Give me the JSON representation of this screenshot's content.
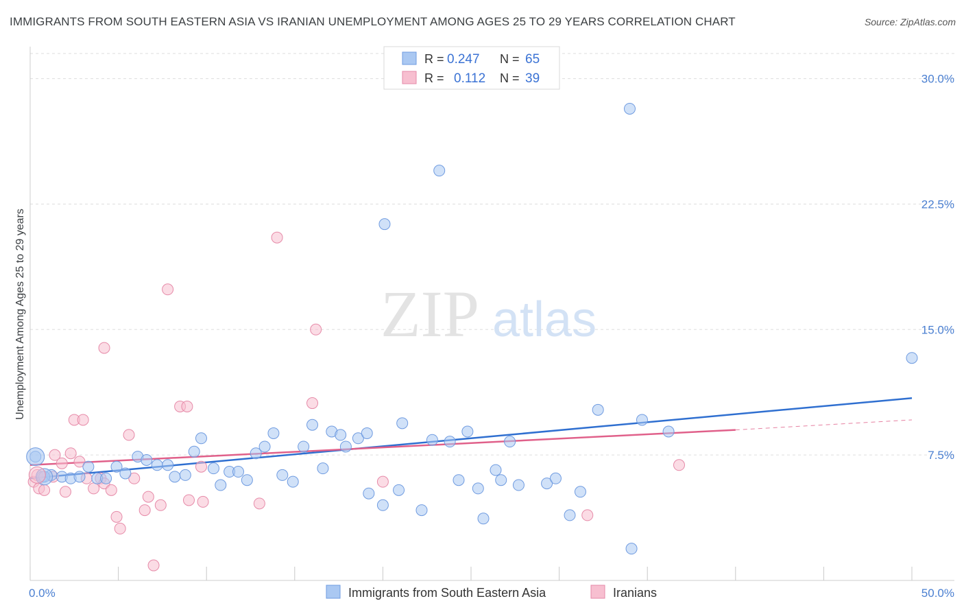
{
  "title": "IMMIGRANTS FROM SOUTH EASTERN ASIA VS IRANIAN UNEMPLOYMENT AMONG AGES 25 TO 29 YEARS CORRELATION CHART",
  "source": "Source: ZipAtlas.com",
  "watermark": {
    "zip": "ZIP",
    "atlas": "atlas"
  },
  "colors": {
    "blue_fill": "#aac8f2",
    "blue_stroke": "#6f9be0",
    "blue_line": "#2f6fd0",
    "pink_fill": "#f7bfd0",
    "pink_stroke": "#e68aa8",
    "pink_line": "#e0608a",
    "tick_text": "#4a7fd1",
    "grid": "#dddddd"
  },
  "legend": {
    "rows": [
      {
        "r_label": "R =",
        "r_value": "0.247",
        "n_label": "N =",
        "n_value": "65",
        "color": "blue"
      },
      {
        "r_label": "R =",
        "r_value": "0.112",
        "n_label": "N =",
        "n_value": "39",
        "color": "pink"
      }
    ]
  },
  "bottom_legend": [
    {
      "label": "Immigrants from South Eastern Asia",
      "color": "blue"
    },
    {
      "label": "Iranians",
      "color": "pink"
    }
  ],
  "chart_data": {
    "type": "scatter",
    "title": "IMMIGRANTS FROM SOUTH EASTERN ASIA VS IRANIAN UNEMPLOYMENT AMONG AGES 25 TO 29 YEARS CORRELATION CHART",
    "xlabel": "",
    "ylabel": "Unemployment Among Ages 25 to 29 years",
    "xlim": [
      0,
      50
    ],
    "ylim": [
      0,
      31.5
    ],
    "x_tick_labels": [
      "0.0%",
      "50.0%"
    ],
    "y_ticks": [
      7.5,
      15.0,
      22.5,
      30.0
    ],
    "y_tick_labels": [
      "7.5%",
      "15.0%",
      "22.5%",
      "30.0%"
    ],
    "grid": true,
    "legend_position": "top-center",
    "series": [
      {
        "name": "Immigrants from South Eastern Asia",
        "color": "blue",
        "points": [
          [
            0.3,
            7.4
          ],
          [
            0.7,
            6.2
          ],
          [
            1.2,
            6.3
          ],
          [
            1.8,
            6.2
          ],
          [
            2.3,
            6.1
          ],
          [
            2.8,
            6.2
          ],
          [
            3.3,
            6.8
          ],
          [
            3.8,
            6.1
          ],
          [
            4.3,
            6.1
          ],
          [
            4.9,
            6.8
          ],
          [
            5.4,
            6.4
          ],
          [
            6.1,
            7.4
          ],
          [
            6.6,
            7.2
          ],
          [
            7.2,
            6.9
          ],
          [
            7.8,
            6.9
          ],
          [
            8.2,
            6.2
          ],
          [
            8.8,
            6.3
          ],
          [
            9.3,
            7.7
          ],
          [
            9.7,
            8.5
          ],
          [
            10.4,
            6.7
          ],
          [
            10.8,
            5.7
          ],
          [
            11.3,
            6.5
          ],
          [
            11.8,
            6.5
          ],
          [
            12.3,
            6.0
          ],
          [
            12.8,
            7.6
          ],
          [
            13.3,
            8.0
          ],
          [
            13.8,
            8.8
          ],
          [
            14.3,
            6.3
          ],
          [
            14.9,
            5.9
          ],
          [
            15.5,
            8.0
          ],
          [
            16.0,
            9.3
          ],
          [
            16.6,
            6.7
          ],
          [
            17.1,
            8.9
          ],
          [
            17.6,
            8.7
          ],
          [
            17.9,
            8.0
          ],
          [
            18.6,
            8.5
          ],
          [
            19.1,
            8.8
          ],
          [
            19.2,
            5.2
          ],
          [
            20.1,
            21.3
          ],
          [
            20.0,
            4.5
          ],
          [
            20.9,
            5.4
          ],
          [
            21.1,
            9.4
          ],
          [
            22.2,
            4.2
          ],
          [
            22.8,
            8.4
          ],
          [
            23.2,
            24.5
          ],
          [
            23.8,
            8.3
          ],
          [
            24.3,
            6.0
          ],
          [
            24.8,
            8.9
          ],
          [
            25.4,
            5.5
          ],
          [
            25.7,
            3.7
          ],
          [
            26.4,
            6.6
          ],
          [
            26.7,
            6.0
          ],
          [
            27.2,
            8.3
          ],
          [
            27.7,
            5.7
          ],
          [
            29.3,
            5.8
          ],
          [
            29.8,
            6.1
          ],
          [
            30.6,
            3.9
          ],
          [
            31.2,
            5.3
          ],
          [
            32.2,
            10.2
          ],
          [
            34.0,
            28.2
          ],
          [
            34.7,
            9.6
          ],
          [
            34.1,
            1.9
          ],
          [
            36.2,
            8.9
          ],
          [
            50.0,
            13.3
          ],
          [
            0.8,
            6.2
          ]
        ]
      },
      {
        "name": "Iranians",
        "color": "pink",
        "points": [
          [
            0.2,
            5.9
          ],
          [
            0.5,
            5.5
          ],
          [
            0.8,
            5.4
          ],
          [
            1.3,
            6.2
          ],
          [
            1.4,
            7.5
          ],
          [
            1.8,
            7.0
          ],
          [
            2.0,
            5.3
          ],
          [
            2.3,
            7.6
          ],
          [
            2.5,
            9.6
          ],
          [
            3.0,
            9.6
          ],
          [
            2.8,
            7.1
          ],
          [
            3.2,
            6.1
          ],
          [
            3.6,
            5.5
          ],
          [
            4.0,
            6.1
          ],
          [
            4.2,
            5.8
          ],
          [
            4.2,
            13.9
          ],
          [
            4.6,
            5.4
          ],
          [
            4.9,
            3.8
          ],
          [
            5.1,
            3.1
          ],
          [
            5.6,
            8.7
          ],
          [
            5.9,
            6.1
          ],
          [
            6.5,
            4.2
          ],
          [
            6.7,
            5.0
          ],
          [
            7.0,
            0.9
          ],
          [
            7.4,
            4.5
          ],
          [
            7.8,
            17.4
          ],
          [
            8.5,
            10.4
          ],
          [
            8.9,
            10.4
          ],
          [
            9.0,
            4.8
          ],
          [
            9.7,
            6.8
          ],
          [
            9.8,
            4.7
          ],
          [
            13.0,
            4.6
          ],
          [
            14.0,
            20.5
          ],
          [
            16.2,
            15.0
          ],
          [
            16.0,
            10.6
          ],
          [
            20.0,
            5.9
          ],
          [
            31.6,
            3.9
          ],
          [
            36.8,
            6.9
          ],
          [
            0.4,
            6.3
          ]
        ]
      }
    ],
    "trend_lines": [
      {
        "series": "Immigrants from South Eastern Asia",
        "x": [
          0,
          50
        ],
        "y": [
          6.1,
          10.9
        ],
        "style": "solid"
      },
      {
        "series": "Iranians",
        "x": [
          0,
          40
        ],
        "y": [
          6.9,
          9.0
        ],
        "style": "solid"
      },
      {
        "series": "Iranians",
        "x": [
          40,
          50
        ],
        "y": [
          9.0,
          9.6
        ],
        "style": "dashed"
      }
    ]
  }
}
